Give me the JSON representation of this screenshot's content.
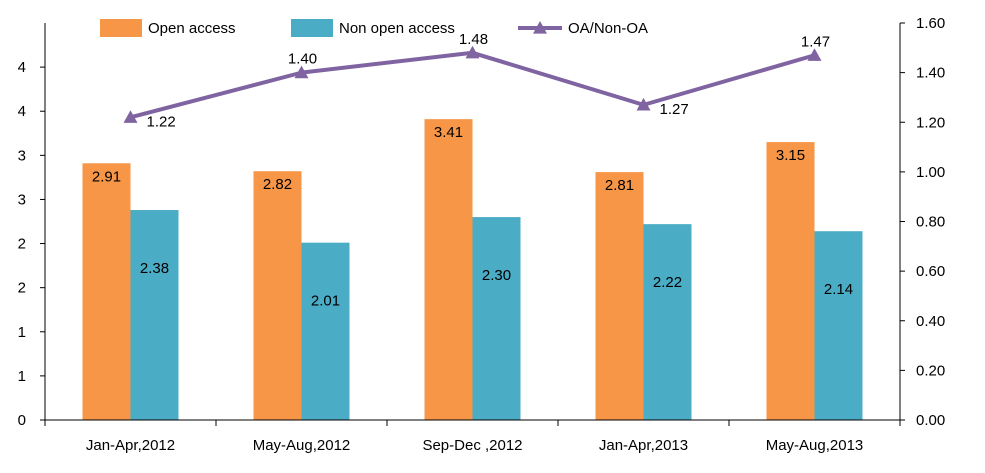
{
  "chart_data": {
    "type": "bar",
    "categories": [
      "Jan-Apr,2012",
      "May-Aug,2012",
      "Sep-Dec ,2012",
      "Jan-Apr,2013",
      "May-Aug,2013"
    ],
    "series": [
      {
        "name": "Open access",
        "type": "bar",
        "axis": "left",
        "color": "#F79646",
        "values": [
          2.91,
          2.82,
          3.41,
          2.81,
          3.15
        ],
        "labels": [
          "2.91",
          "2.82",
          "3.41",
          "2.81",
          "3.15"
        ]
      },
      {
        "name": "Non open access",
        "type": "bar",
        "axis": "left",
        "color": "#4BACC6",
        "values": [
          2.38,
          2.01,
          2.3,
          2.22,
          2.14
        ],
        "labels": [
          "2.38",
          "2.01",
          "2.30",
          "2.22",
          "2.14"
        ]
      },
      {
        "name": "OA/Non-OA",
        "type": "line",
        "axis": "right",
        "marker": "triangle",
        "color": "#8064A2",
        "values": [
          1.22,
          1.4,
          1.48,
          1.27,
          1.47
        ],
        "labels": [
          "1.22",
          "1.40",
          "1.48",
          "1.27",
          "1.47"
        ]
      }
    ],
    "y_left": {
      "range": [
        0,
        4.5
      ],
      "ticks": [
        0,
        0.5,
        1,
        1.5,
        2,
        2.5,
        3,
        3.5,
        4
      ],
      "tick_labels": [
        "0",
        "1",
        "1",
        "2",
        "2",
        "3",
        "3",
        "4",
        "4"
      ]
    },
    "y_right": {
      "range": [
        0,
        1.6
      ],
      "ticks": [
        0,
        0.2,
        0.4,
        0.6,
        0.8,
        1.0,
        1.2,
        1.4,
        1.6
      ],
      "tick_labels": [
        "0.00",
        "0.20",
        "0.40",
        "0.60",
        "0.80",
        "1.00",
        "1.20",
        "1.40",
        "1.60"
      ]
    },
    "legend_position": "top",
    "grid": false
  }
}
